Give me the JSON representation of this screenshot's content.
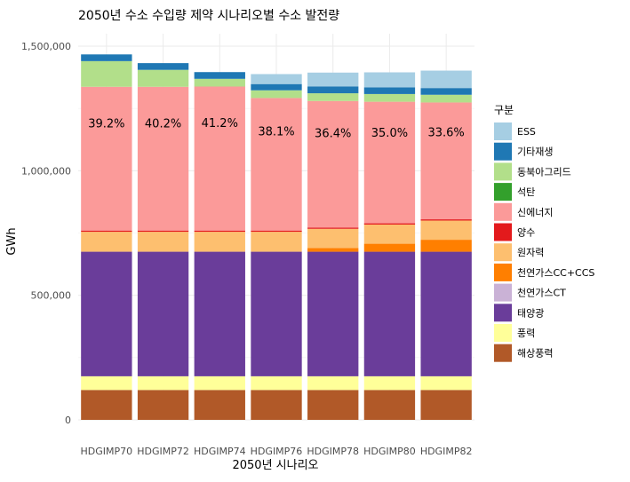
{
  "chart_data": {
    "type": "bar",
    "stacked": true,
    "title": "2050년 수소 수입량 제약 시나리오별 수소 발전량",
    "xlabel": "2050년 시나리오",
    "ylabel": "GWh",
    "ylim": [
      0,
      1550000
    ],
    "yticks": [
      0,
      500000,
      1000000,
      1500000
    ],
    "ytick_labels": [
      "0",
      "500,000",
      "1,000,000",
      "1,500,000"
    ],
    "grid": true,
    "legend_title": "구분",
    "legend_position": "right",
    "categories": [
      "HDGIMP70",
      "HDGIMP72",
      "HDGIMP74",
      "HDGIMP76",
      "HDGIMP78",
      "HDGIMP80",
      "HDGIMP82"
    ],
    "series": [
      {
        "name": "해상풍력",
        "color": "#B15928",
        "values": [
          120000,
          120000,
          120000,
          120000,
          120000,
          120000,
          120000
        ]
      },
      {
        "name": "풍력",
        "color": "#FFFF99",
        "values": [
          55000,
          55000,
          55000,
          55000,
          55000,
          55000,
          55000
        ]
      },
      {
        "name": "태양광",
        "color": "#6A3D9A",
        "values": [
          500000,
          500000,
          500000,
          500000,
          500000,
          500000,
          500000
        ]
      },
      {
        "name": "천연가스CT",
        "color": "#CAB2D6",
        "values": [
          0,
          0,
          0,
          0,
          0,
          0,
          0
        ]
      },
      {
        "name": "천연가스CC+CCS",
        "color": "#FF7F00",
        "values": [
          0,
          0,
          0,
          0,
          15000,
          32000,
          48000
        ]
      },
      {
        "name": "원자력",
        "color": "#FDBF6F",
        "values": [
          80000,
          80000,
          80000,
          80000,
          77000,
          77000,
          77000
        ]
      },
      {
        "name": "양수",
        "color": "#E31A1C",
        "values": [
          5000,
          5000,
          5000,
          5000,
          5000,
          5000,
          5000
        ]
      },
      {
        "name": "석탄",
        "color": "#33A02C",
        "values": [
          0,
          0,
          0,
          0,
          0,
          0,
          0
        ]
      },
      {
        "name": "신에너지",
        "color": "#FB9A99",
        "values": [
          577000,
          577000,
          578000,
          532000,
          508000,
          488000,
          469000
        ]
      },
      {
        "name": "동북아그리드",
        "color": "#B2DF8A",
        "values": [
          103000,
          68000,
          31000,
          31000,
          31000,
          31000,
          31000
        ]
      },
      {
        "name": "기타재생",
        "color": "#1F78B4",
        "values": [
          27000,
          27000,
          27000,
          25000,
          27000,
          27000,
          27000
        ]
      },
      {
        "name": "ESS",
        "color": "#A6CEE3",
        "values": [
          0,
          0,
          0,
          40000,
          56000,
          60000,
          70000
        ]
      }
    ],
    "bar_labels": [
      "39.2%",
      "40.2%",
      "41.2%",
      "38.1%",
      "36.4%",
      "35.0%",
      "33.6%"
    ],
    "legend_order": [
      "ESS",
      "기타재생",
      "동북아그리드",
      "석탄",
      "신에너지",
      "양수",
      "원자력",
      "천연가스CC+CCS",
      "천연가스CT",
      "태양광",
      "풍력",
      "해상풍력"
    ]
  }
}
